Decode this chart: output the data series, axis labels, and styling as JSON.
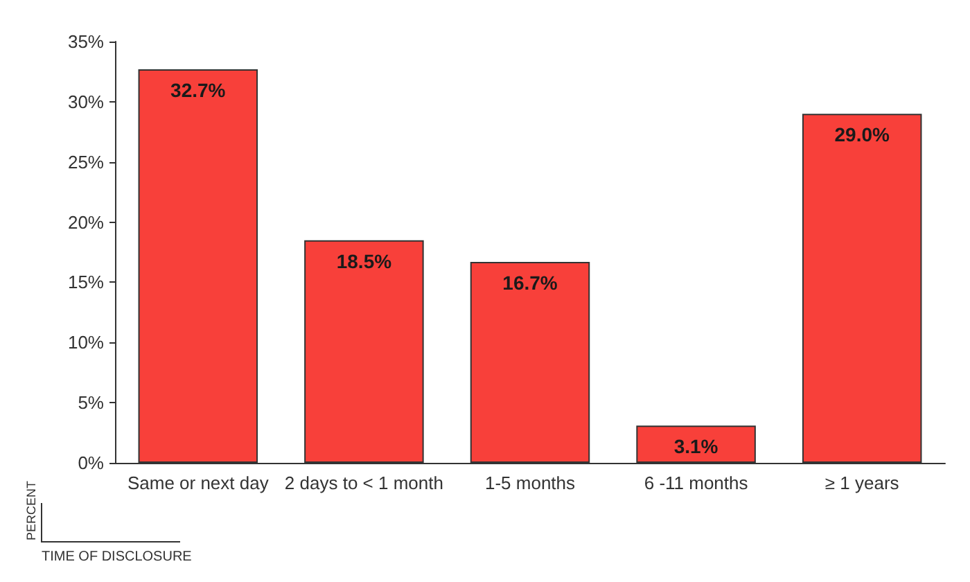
{
  "chart_data": {
    "type": "bar",
    "xlabel": "TIME OF DISCLOSURE",
    "ylabel": "PERCENT",
    "categories": [
      "Same or next day",
      "2 days to < 1 month",
      "1-5 months",
      "6 -11 months",
      "≥ 1 years"
    ],
    "values": [
      32.7,
      18.5,
      16.7,
      3.1,
      29.0
    ],
    "color": "#f8403a",
    "value_labels": [
      "32.7%",
      "18.5%",
      "16.7%",
      "3.1%",
      "29.0%"
    ],
    "ylim": [
      0,
      35
    ],
    "yticks": [
      {
        "value": 0,
        "label": "0%"
      },
      {
        "value": 5,
        "label": "5%"
      },
      {
        "value": 10,
        "label": "10%"
      },
      {
        "value": 15,
        "label": "15%"
      },
      {
        "value": 20,
        "label": "20%"
      },
      {
        "value": 25,
        "label": "25%"
      },
      {
        "value": 30,
        "label": "30%"
      },
      {
        "value": 35,
        "label": "35%"
      }
    ],
    "grid": false
  }
}
